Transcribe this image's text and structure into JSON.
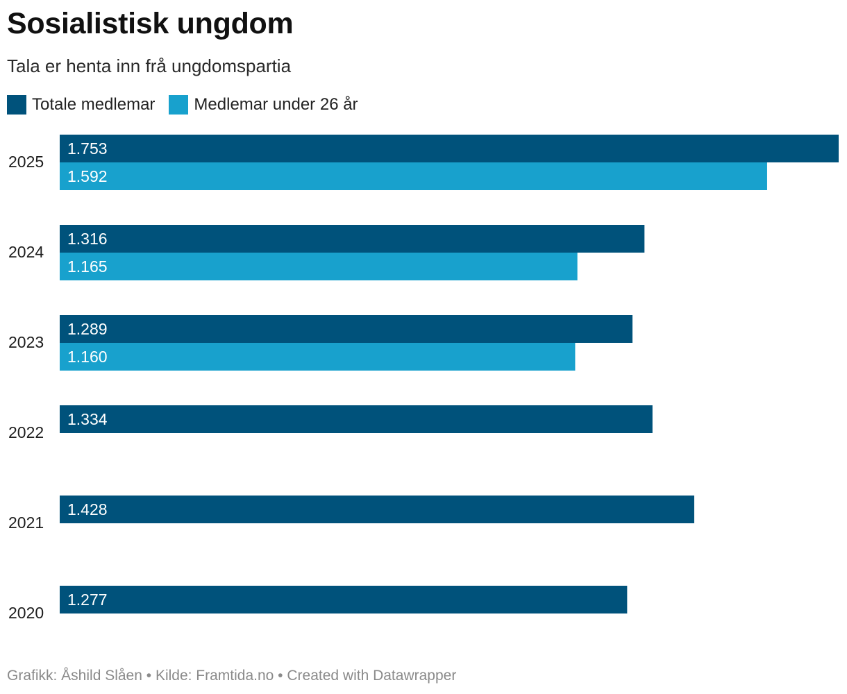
{
  "title": "Sosialistisk ungdom",
  "subtitle": "Tala er henta inn frå ungdomspartia",
  "footer": "Grafikk: Åshild Slåen • Kilde: Framtida.no • Created with Datawrapper",
  "colors": {
    "total": "#00527b",
    "under26": "#18a1cd",
    "label_text": "#ffffff"
  },
  "chart_data": {
    "type": "bar",
    "orientation": "horizontal",
    "categories": [
      "2025",
      "2024",
      "2023",
      "2022",
      "2021",
      "2020"
    ],
    "series": [
      {
        "name": "Totale medlemar",
        "values": [
          1753,
          1316,
          1289,
          1334,
          1428,
          1277
        ],
        "labels": [
          "1.753",
          "1.316",
          "1.289",
          "1.334",
          "1.428",
          "1.277"
        ]
      },
      {
        "name": "Medlemar under 26 år",
        "values": [
          1592,
          1165,
          1160,
          null,
          null,
          null
        ],
        "labels": [
          "1.592",
          "1.165",
          "1.160",
          null,
          null,
          null
        ]
      }
    ],
    "xlim": [
      0,
      1753
    ],
    "grid": false,
    "legend_position": "top-left"
  }
}
